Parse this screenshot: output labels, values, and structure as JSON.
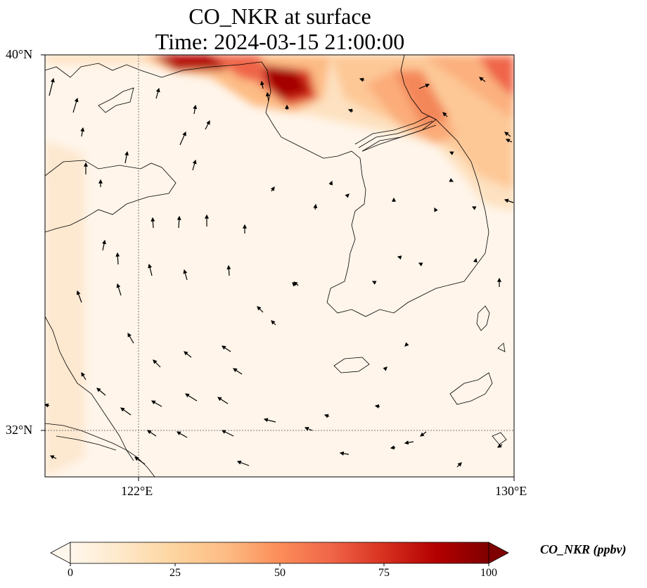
{
  "title": {
    "line1": "CO_NKR at surface",
    "line2": "Time: 2024-03-15 21:00:00"
  },
  "map": {
    "extent": {
      "lon": [
        120,
        130
      ],
      "lat": [
        31,
        40
      ]
    },
    "lat_ticks": [
      {
        "value": 40,
        "label": "40°N"
      },
      {
        "value": 32,
        "label": "32°N"
      }
    ],
    "lon_ticks": [
      {
        "value": 122,
        "label": "122°E"
      },
      {
        "value": 130,
        "label": "130°E"
      }
    ],
    "gridlines": "dotted",
    "colormap": "OrRd",
    "vectors": "wind arrows"
  },
  "colorbar": {
    "label": "CO_NKR (ppbv)",
    "min": 0,
    "max": 100,
    "extend": "both",
    "ticks": [
      0,
      25,
      50,
      75,
      100
    ],
    "colors": [
      "#fff7ec",
      "#fee8c8",
      "#fdd49e",
      "#fdbb84",
      "#fc8d59",
      "#ef6548",
      "#d7301f",
      "#b30000",
      "#7f0000"
    ]
  }
}
